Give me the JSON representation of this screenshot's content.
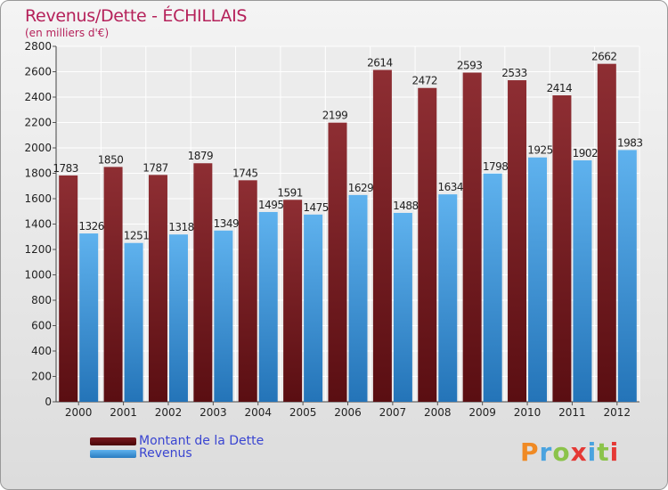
{
  "title": "Revenus/Dette - ÉCHILLAIS",
  "subtitle": "(en milliers d'€)",
  "chart_data": {
    "type": "bar",
    "categories": [
      "2000",
      "2001",
      "2002",
      "2003",
      "2004",
      "2005",
      "2006",
      "2007",
      "2008",
      "2009",
      "2010",
      "2011",
      "2012"
    ],
    "series": [
      {
        "name": "Montant de la Dette",
        "color": "#8b2a2f",
        "values": [
          1783,
          1850,
          1787,
          1879,
          1745,
          1591,
          2199,
          2614,
          2472,
          2593,
          2533,
          2414,
          2662
        ]
      },
      {
        "name": "Revenus",
        "color": "#4ea6e6",
        "values": [
          1326,
          1251,
          1318,
          1349,
          1495,
          1475,
          1629,
          1488,
          1634,
          1798,
          1925,
          1902,
          1983
        ]
      }
    ],
    "ylim": [
      0,
      2800
    ],
    "yticks": [
      0,
      200,
      400,
      600,
      800,
      1000,
      1200,
      1400,
      1600,
      1800,
      2000,
      2200,
      2400,
      2600,
      2800
    ],
    "grid": true,
    "legend": "bottom-left"
  },
  "logo": {
    "text": "Proxiti",
    "colors": [
      "#f08a24",
      "#4aa3df",
      "#8bc34a",
      "#e53935",
      "#4aa3df",
      "#8bc34a",
      "#e53935"
    ]
  }
}
